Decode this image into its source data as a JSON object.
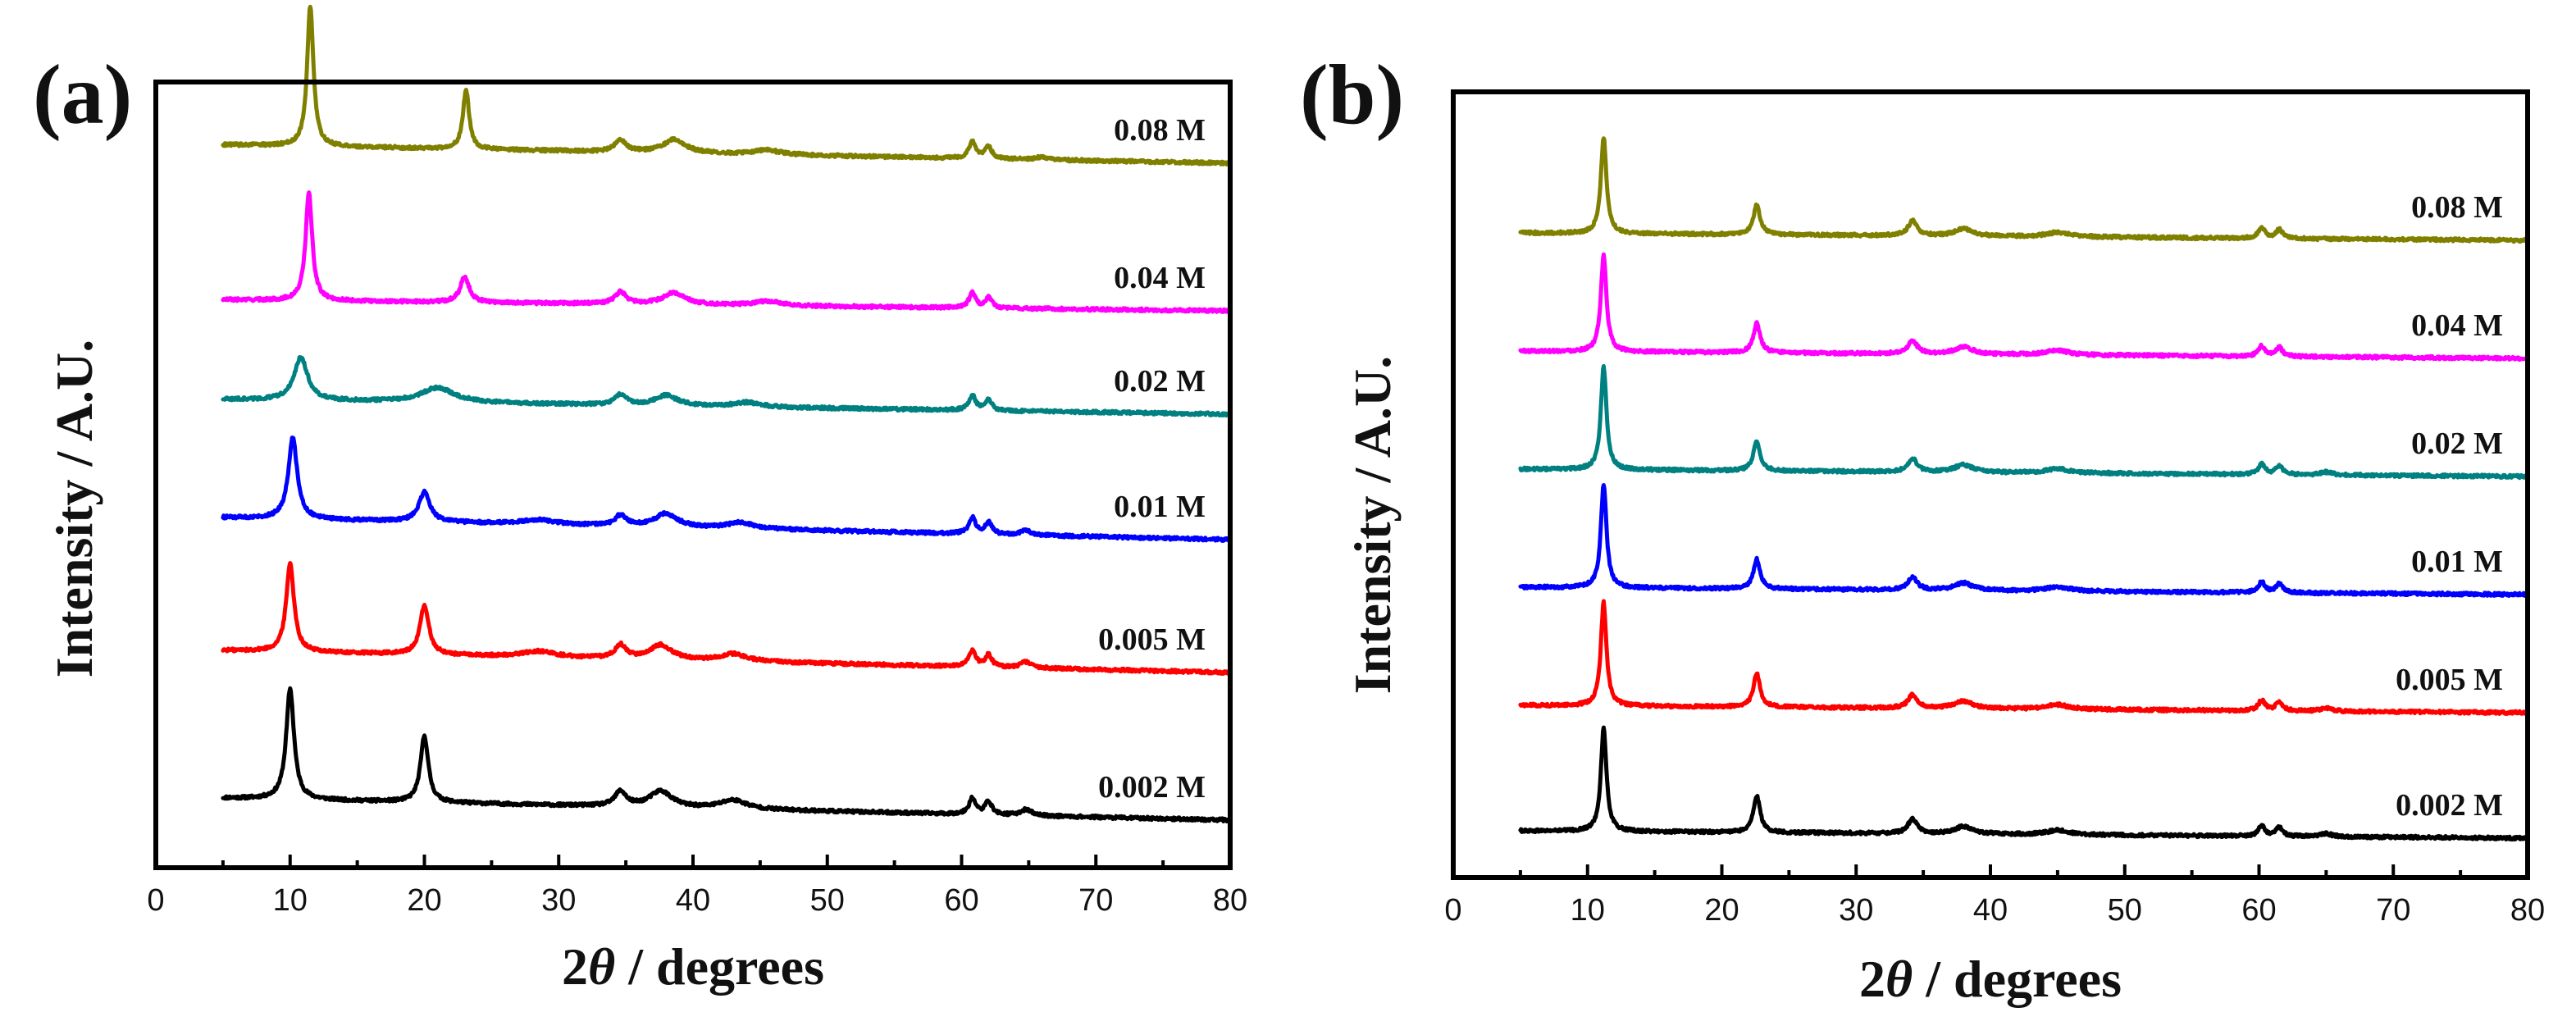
{
  "chart_data": [
    {
      "type": "line",
      "panel_label": "(a)",
      "xlabel_prefix": "2",
      "xlabel_symbol": "θ",
      "xlabel_suffix": " / degrees",
      "ylabel": "Intensity / A.U.",
      "xlim": [
        0,
        80
      ],
      "xticks": [
        0,
        10,
        20,
        30,
        40,
        50,
        60,
        70,
        80
      ],
      "yticks_shown": false,
      "legend_placement": "inline-right-above-each-trace",
      "series": [
        {
          "name": "0.002 M",
          "color": "#000000",
          "baseline": 0.0,
          "drop": 0.03,
          "peaks": [
            [
              10.0,
              0.15,
              0.35
            ],
            [
              20.0,
              0.09,
              0.35
            ],
            [
              34.6,
              0.02,
              0.5
            ],
            [
              37.6,
              0.022,
              1.0
            ],
            [
              43.0,
              0.012,
              1.2
            ],
            [
              60.8,
              0.022,
              0.3
            ],
            [
              62.0,
              0.018,
              0.3
            ],
            [
              64.8,
              0.008,
              0.5
            ]
          ]
        },
        {
          "name": "0.005 M",
          "color": "#ff0000",
          "baseline": 0.2,
          "drop": 0.03,
          "peaks": [
            [
              10.0,
              0.12,
              0.35
            ],
            [
              20.0,
              0.066,
              0.4
            ],
            [
              28.5,
              0.008,
              1.5
            ],
            [
              34.6,
              0.018,
              0.5
            ],
            [
              37.6,
              0.02,
              1.0
            ],
            [
              43.0,
              0.01,
              1.2
            ],
            [
              60.8,
              0.022,
              0.3
            ],
            [
              62.0,
              0.016,
              0.3
            ],
            [
              64.8,
              0.008,
              0.5
            ]
          ]
        },
        {
          "name": "0.01 M",
          "color": "#0000ff",
          "baseline": 0.38,
          "drop": 0.03,
          "peaks": [
            [
              10.2,
              0.11,
              0.4
            ],
            [
              20.0,
              0.04,
              0.5
            ],
            [
              28.5,
              0.006,
              1.5
            ],
            [
              34.6,
              0.014,
              0.5
            ],
            [
              38.0,
              0.018,
              1.0
            ],
            [
              43.5,
              0.008,
              1.2
            ],
            [
              60.8,
              0.022,
              0.3
            ],
            [
              62.0,
              0.016,
              0.3
            ],
            [
              64.8,
              0.006,
              0.5
            ]
          ]
        },
        {
          "name": "0.02 M",
          "color": "#008080",
          "baseline": 0.55,
          "drop": 0.02,
          "peaks": [
            [
              10.8,
              0.058,
              0.6
            ],
            [
              21.0,
              0.02,
              1.5
            ],
            [
              34.6,
              0.014,
              0.5
            ],
            [
              38.0,
              0.014,
              1.0
            ],
            [
              44.0,
              0.006,
              1.2
            ],
            [
              60.8,
              0.02,
              0.3
            ],
            [
              62.0,
              0.014,
              0.3
            ]
          ]
        },
        {
          "name": "0.04 M",
          "color": "#ff00ff",
          "baseline": 0.69,
          "drop": 0.015,
          "peaks": [
            [
              11.4,
              0.145,
              0.3
            ],
            [
              23.0,
              0.035,
              0.4
            ],
            [
              34.6,
              0.016,
              0.5
            ],
            [
              38.6,
              0.016,
              1.0
            ],
            [
              45.5,
              0.006,
              1.2
            ],
            [
              60.8,
              0.02,
              0.3
            ],
            [
              62.0,
              0.014,
              0.3
            ]
          ]
        },
        {
          "name": "0.08 M",
          "color": "#808000",
          "baseline": 0.89,
          "drop": 0.025,
          "peaks": [
            [
              11.5,
              0.19,
              0.28
            ],
            [
              23.1,
              0.08,
              0.28
            ],
            [
              34.6,
              0.016,
              0.5
            ],
            [
              38.6,
              0.018,
              1.0
            ],
            [
              45.5,
              0.006,
              1.2
            ],
            [
              60.8,
              0.022,
              0.3
            ],
            [
              62.0,
              0.016,
              0.3
            ],
            [
              66.0,
              0.004,
              0.5
            ]
          ]
        }
      ]
    },
    {
      "type": "line",
      "panel_label": "(b)",
      "xlabel_prefix": "2",
      "xlabel_symbol": "θ",
      "xlabel_suffix": " / degrees",
      "ylabel": "Intensity / A.U.",
      "xlim": [
        0,
        80
      ],
      "xticks": [
        0,
        10,
        20,
        30,
        40,
        50,
        60,
        70,
        80
      ],
      "yticks_shown": false,
      "legend_placement": "inline-right-above-each-trace",
      "series": [
        {
          "name": "0.002 M",
          "color": "#000000",
          "baseline": 0.0,
          "drop": 0.01,
          "peaks": [
            [
              11.2,
              0.14,
              0.25
            ],
            [
              22.6,
              0.05,
              0.3
            ],
            [
              34.2,
              0.02,
              0.4
            ],
            [
              38.0,
              0.01,
              0.8
            ],
            [
              45.0,
              0.006,
              1.0
            ],
            [
              60.2,
              0.014,
              0.3
            ],
            [
              61.5,
              0.012,
              0.3
            ],
            [
              65.0,
              0.004,
              0.5
            ]
          ]
        },
        {
          "name": "0.005 M",
          "color": "#ff0000",
          "baseline": 0.17,
          "drop": 0.01,
          "peaks": [
            [
              11.2,
              0.14,
              0.25
            ],
            [
              22.6,
              0.045,
              0.3
            ],
            [
              34.2,
              0.018,
              0.4
            ],
            [
              38.0,
              0.01,
              0.8
            ],
            [
              45.0,
              0.006,
              1.0
            ],
            [
              60.2,
              0.014,
              0.3
            ],
            [
              61.5,
              0.012,
              0.3
            ],
            [
              65.0,
              0.004,
              0.5
            ]
          ]
        },
        {
          "name": "0.01 M",
          "color": "#0000ff",
          "baseline": 0.33,
          "drop": 0.01,
          "peaks": [
            [
              11.2,
              0.14,
              0.25
            ],
            [
              22.6,
              0.04,
              0.3
            ],
            [
              34.2,
              0.018,
              0.4
            ],
            [
              38.0,
              0.01,
              0.8
            ],
            [
              45.0,
              0.006,
              1.0
            ],
            [
              60.2,
              0.014,
              0.3
            ],
            [
              61.5,
              0.012,
              0.3
            ]
          ]
        },
        {
          "name": "0.02 M",
          "color": "#008080",
          "baseline": 0.49,
          "drop": 0.01,
          "peaks": [
            [
              11.2,
              0.14,
              0.25
            ],
            [
              22.6,
              0.04,
              0.3
            ],
            [
              34.2,
              0.018,
              0.4
            ],
            [
              38.0,
              0.01,
              0.8
            ],
            [
              45.0,
              0.006,
              1.0
            ],
            [
              60.2,
              0.014,
              0.3
            ],
            [
              61.5,
              0.012,
              0.3
            ],
            [
              65.0,
              0.004,
              0.5
            ]
          ]
        },
        {
          "name": "0.04 M",
          "color": "#ff00ff",
          "baseline": 0.65,
          "drop": 0.01,
          "peaks": [
            [
              11.2,
              0.13,
              0.25
            ],
            [
              22.6,
              0.04,
              0.3
            ],
            [
              34.2,
              0.018,
              0.4
            ],
            [
              38.0,
              0.01,
              0.8
            ],
            [
              45.0,
              0.006,
              1.0
            ],
            [
              60.2,
              0.014,
              0.3
            ],
            [
              61.5,
              0.012,
              0.3
            ]
          ]
        },
        {
          "name": "0.08 M",
          "color": "#808000",
          "baseline": 0.81,
          "drop": 0.01,
          "peaks": [
            [
              11.2,
              0.13,
              0.25
            ],
            [
              22.6,
              0.04,
              0.3
            ],
            [
              34.2,
              0.02,
              0.4
            ],
            [
              38.0,
              0.01,
              0.8
            ],
            [
              45.0,
              0.006,
              1.0
            ],
            [
              60.2,
              0.014,
              0.3
            ],
            [
              61.5,
              0.012,
              0.3
            ]
          ]
        }
      ]
    }
  ]
}
